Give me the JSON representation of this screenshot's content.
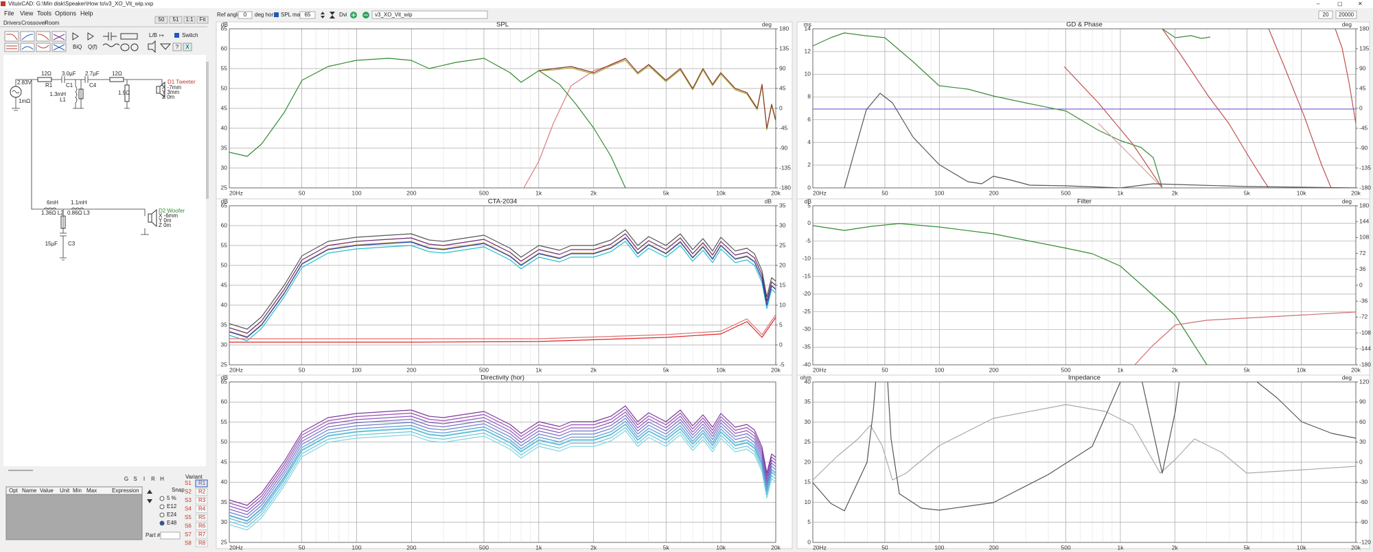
{
  "window_title": "VituixCAD: G:\\Min disk\\Speaker\\How to\\v3_XO_Vit_wip.vxp",
  "menu": [
    "File",
    "View",
    "Tools",
    "Options",
    "Help"
  ],
  "tabs": [
    "Drivers",
    "Crossover",
    "Room"
  ],
  "zoom_buttons": [
    "50",
    "51",
    "1:1",
    "Fit"
  ],
  "tool_labels": [
    "BiQ",
    "Q(f)",
    "L/B",
    "Switch",
    "?",
    "X"
  ],
  "toolbar": {
    "ref_angle_label": "Ref angle",
    "ref_angle": "0",
    "deg_hor": "deg hor",
    "spl_max_label": "SPL max",
    "spl_max": "65",
    "dvi": "Dvi",
    "file": "v3_XO_Vit_wip",
    "f_min": "20",
    "f_max": "20000"
  },
  "schematic_labels": [
    "2.83V",
    "1mΩ",
    "12Ω",
    "R1",
    "3.0µF",
    "C1",
    "2.7µF",
    "C4",
    "12Ω",
    "1.3mH",
    "L1",
    "1.9Ω",
    "D1 Tweeter",
    "X -7mm",
    "Y 3mm",
    "Z 0m",
    "6mH",
    "1.36Ω L2",
    "1.1mH",
    "0.86Ω L3",
    "15µF",
    "C3",
    "D2 Woofer",
    "X -6mm",
    "Y 0m",
    "Z 0m"
  ],
  "part_buttons": [
    "G",
    "S",
    "I",
    "R",
    "H"
  ],
  "parts_table": {
    "headers": [
      "Opt",
      "Name",
      "Value",
      "Unit",
      "Min",
      "Max",
      "Expression"
    ]
  },
  "snap": {
    "label": "Snap",
    "options": [
      "5 %",
      "E12",
      "E24",
      "E48"
    ]
  },
  "part_label": "Part #",
  "variant": {
    "label": "Variant",
    "s": [
      "S1",
      "S2",
      "S3",
      "S4",
      "S5",
      "S6",
      "S7",
      "S8"
    ],
    "r": [
      "R1",
      "R2",
      "R3",
      "R4",
      "R5",
      "R6",
      "R7",
      "R8"
    ]
  },
  "plots": [
    {
      "title": "SPL",
      "y_unit": "dB",
      "y2_unit": "deg",
      "y_ticks": [
        65,
        60,
        55,
        50,
        45,
        40,
        35,
        30,
        25
      ],
      "y2_ticks": [
        180,
        135,
        90,
        45,
        0,
        -45,
        -90,
        -135,
        -180
      ]
    },
    {
      "title": "GD & Phase",
      "y_unit": "ms",
      "y2_unit": "deg",
      "y_ticks": [
        14,
        12,
        10,
        8,
        6,
        4,
        2,
        0
      ],
      "y2_ticks": [
        180,
        135,
        90,
        45,
        0,
        -45,
        -90,
        -135,
        -180
      ]
    },
    {
      "title": "CTA-2034",
      "y_unit": "dB",
      "y2_unit": "dB",
      "y_ticks": [
        65,
        60,
        55,
        50,
        45,
        40,
        35,
        30,
        25
      ],
      "y2_ticks": [
        35,
        30,
        25,
        20,
        15,
        10,
        5,
        0,
        -5
      ]
    },
    {
      "title": "Filter",
      "y_unit": "dB",
      "y2_unit": "deg",
      "y_ticks": [
        5,
        0,
        -5,
        -10,
        -15,
        -20,
        -25,
        -30,
        -35,
        -40
      ],
      "y2_ticks": [
        180,
        144,
        108,
        72,
        36,
        0,
        -36,
        -72,
        -108,
        -144,
        -180
      ]
    },
    {
      "title": "Directivity (hor)",
      "y_unit": "dB",
      "y_ticks": [
        65,
        60,
        55,
        50,
        45,
        40,
        35,
        30,
        25
      ]
    },
    {
      "title": "Impedance",
      "y_unit": "ohm",
      "y2_unit": "deg",
      "y_ticks": [
        40,
        35,
        30,
        25,
        20,
        15,
        10,
        5,
        0
      ],
      "y2_ticks": [
        120,
        90,
        60,
        30,
        0,
        -30,
        -60,
        -90,
        -120
      ]
    }
  ],
  "x_ticks": [
    {
      "value": 20,
      "label": "20Hz"
    },
    50,
    100,
    200,
    500,
    {
      "value": 1000,
      "label": "1k"
    },
    {
      "value": 2000,
      "label": "2k"
    },
    {
      "value": 5000,
      "label": "5k"
    },
    {
      "value": 10000,
      "label": "10k"
    },
    {
      "value": 20000,
      "label": "20k"
    }
  ]
}
